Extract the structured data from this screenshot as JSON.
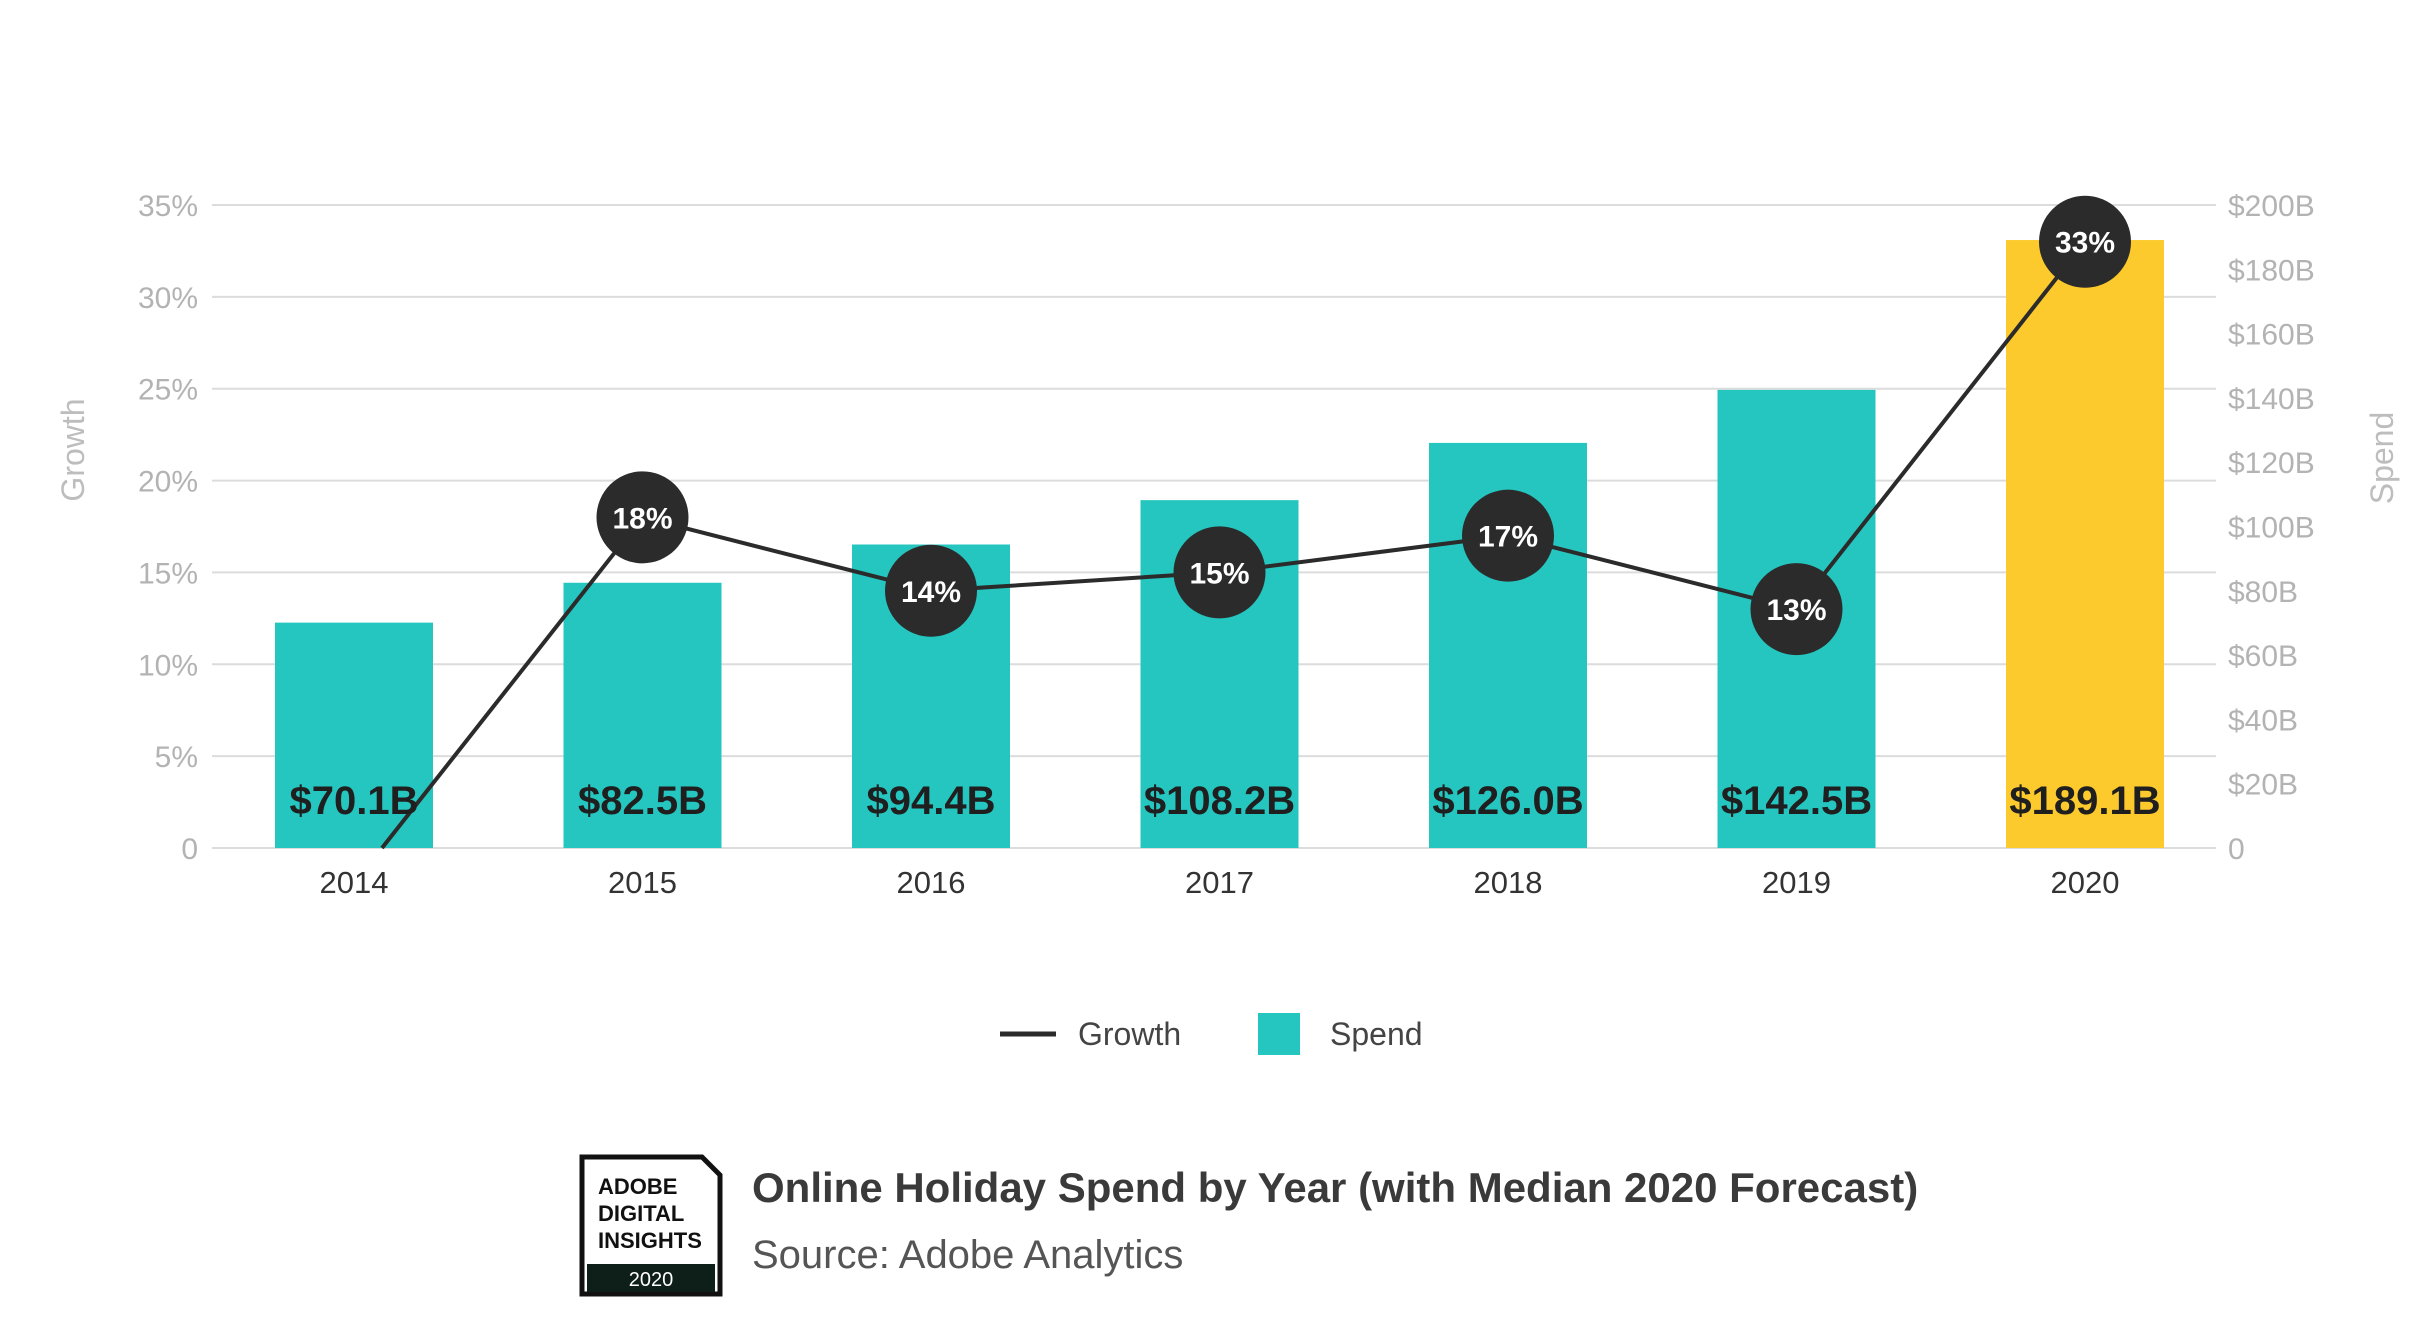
{
  "chart_data": {
    "type": "bar+line",
    "title": "Online Holiday Spend by Year (with Median 2020 Forecast)",
    "source": "Source: Adobe Analytics",
    "categories": [
      "2014",
      "2015",
      "2016",
      "2017",
      "2018",
      "2019",
      "2020"
    ],
    "series": [
      {
        "name": "Spend",
        "type": "bar",
        "axis": "right",
        "values": [
          70.1,
          82.5,
          94.4,
          108.2,
          126.0,
          142.5,
          189.1
        ],
        "labels": [
          "$70.1B",
          "$82.5B",
          "$94.4B",
          "$108.2B",
          "$126.0B",
          "$142.5B",
          "$189.1B"
        ],
        "colors": [
          "#26c6c0",
          "#26c6c0",
          "#26c6c0",
          "#26c6c0",
          "#26c6c0",
          "#26c6c0",
          "#fcca2c"
        ]
      },
      {
        "name": "Growth",
        "type": "line",
        "axis": "left",
        "values": [
          0,
          18,
          14,
          15,
          17,
          13,
          33
        ],
        "labels": [
          "",
          "18%",
          "14%",
          "15%",
          "17%",
          "13%",
          "33%"
        ],
        "color": "#2b2b2b"
      }
    ],
    "left_axis": {
      "label": "Growth",
      "range": [
        0,
        35
      ],
      "ticks": [
        0,
        5,
        10,
        15,
        20,
        25,
        30,
        35
      ],
      "tick_labels": [
        "0",
        "5%",
        "10%",
        "15%",
        "20%",
        "25%",
        "30%",
        "35%"
      ]
    },
    "right_axis": {
      "label": "Spend",
      "range": [
        0,
        200
      ],
      "ticks": [
        0,
        20,
        40,
        60,
        80,
        100,
        120,
        140,
        160,
        180,
        200
      ],
      "tick_labels": [
        "0",
        "$20B",
        "$40B",
        "$60B",
        "$80B",
        "$100B",
        "$120B",
        "$140B",
        "$160B",
        "$180B",
        "$200B"
      ]
    },
    "grid": true,
    "legend": {
      "position": "bottom-center",
      "items": [
        "Growth",
        "Spend"
      ]
    },
    "colors": {
      "spend": "#26c6c0",
      "forecast": "#fcca2c",
      "growth": "#2b2b2b",
      "grid": "#dcdcdc"
    }
  },
  "badge": {
    "line1": "ADOBE",
    "line2": "DIGITAL",
    "line3": "INSIGHTS",
    "year": "2020"
  }
}
